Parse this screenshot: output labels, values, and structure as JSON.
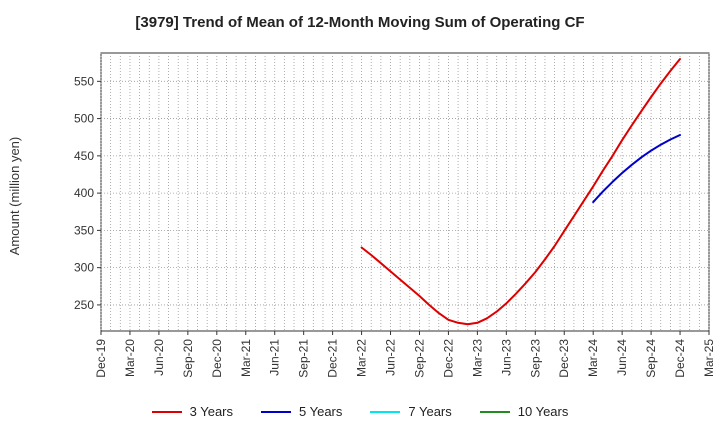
{
  "chart_data": {
    "type": "line",
    "title": "[3979]  Trend of Mean of 12-Month Moving Sum of Operating CF",
    "xlabel": "",
    "ylabel": "Amount (million yen)",
    "x_ticks": [
      "Dec-19",
      "Mar-20",
      "Jun-20",
      "Sep-20",
      "Dec-20",
      "Mar-21",
      "Jun-21",
      "Sep-21",
      "Dec-21",
      "Mar-22",
      "Jun-22",
      "Sep-22",
      "Dec-22",
      "Mar-23",
      "Jun-23",
      "Sep-23",
      "Dec-23",
      "Mar-24",
      "Jun-24",
      "Sep-24",
      "Dec-24",
      "Mar-25"
    ],
    "y_ticks": [
      250,
      300,
      350,
      400,
      450,
      500,
      550
    ],
    "ylim": [
      215,
      588
    ],
    "grid": true,
    "legend_position": "bottom",
    "series": [
      {
        "name": "3 Years",
        "color": "#dd0000",
        "points": [
          [
            "Mar-22",
            327
          ],
          [
            "Apr-22",
            317
          ],
          [
            "May-22",
            306
          ],
          [
            "Jun-22",
            295
          ],
          [
            "Jul-22",
            284
          ],
          [
            "Aug-22",
            273
          ],
          [
            "Sep-22",
            262
          ],
          [
            "Oct-22",
            250
          ],
          [
            "Nov-22",
            239
          ],
          [
            "Dec-22",
            230
          ],
          [
            "Jan-23",
            226
          ],
          [
            "Feb-23",
            224
          ],
          [
            "Mar-23",
            226
          ],
          [
            "Apr-23",
            232
          ],
          [
            "May-23",
            241
          ],
          [
            "Jun-23",
            252
          ],
          [
            "Jul-23",
            265
          ],
          [
            "Aug-23",
            279
          ],
          [
            "Sep-23",
            294
          ],
          [
            "Oct-23",
            311
          ],
          [
            "Nov-23",
            329
          ],
          [
            "Dec-23",
            349
          ],
          [
            "Jan-24",
            369
          ],
          [
            "Feb-24",
            389
          ],
          [
            "Mar-24",
            409
          ],
          [
            "Apr-24",
            430
          ],
          [
            "May-24",
            450
          ],
          [
            "Jun-24",
            471
          ],
          [
            "Jul-24",
            491
          ],
          [
            "Aug-24",
            510
          ],
          [
            "Sep-24",
            529
          ],
          [
            "Oct-24",
            547
          ],
          [
            "Nov-24",
            564
          ],
          [
            "Dec-24",
            580
          ]
        ]
      },
      {
        "name": "5 Years",
        "color": "#0000cc",
        "points": [
          [
            "Mar-24",
            388
          ],
          [
            "Apr-24",
            402
          ],
          [
            "May-24",
            415
          ],
          [
            "Jun-24",
            427
          ],
          [
            "Jul-24",
            438
          ],
          [
            "Aug-24",
            448
          ],
          [
            "Sep-24",
            457
          ],
          [
            "Oct-24",
            465
          ],
          [
            "Nov-24",
            472
          ],
          [
            "Dec-24",
            478
          ]
        ]
      },
      {
        "name": "7 Years",
        "color": "#00e5ee",
        "points": []
      },
      {
        "name": "10 Years",
        "color": "#228b22",
        "points": []
      }
    ]
  }
}
